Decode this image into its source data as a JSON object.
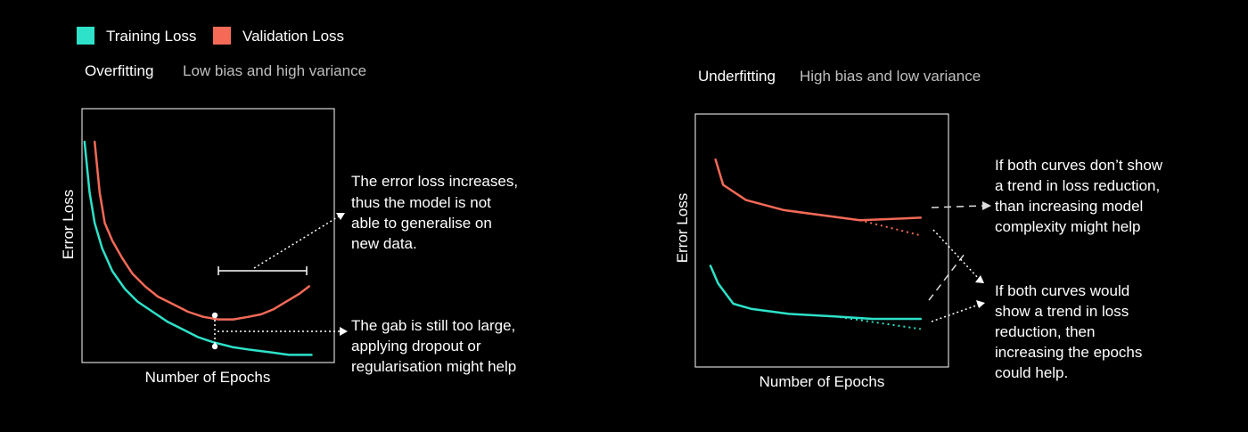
{
  "legend": {
    "items": [
      {
        "label": "Training Loss",
        "color": "#2de2c9"
      },
      {
        "label": "Validation Loss",
        "color": "#f46a57"
      }
    ]
  },
  "colors": {
    "background": "#000000",
    "frame": "#ffffff",
    "title": "#ffffff",
    "subtitle": "#bfbfbf",
    "annotation": "#ffffff"
  },
  "chart_data": [
    {
      "type": "line",
      "title": "Overfitting",
      "subtitle": "Low bias and high variance",
      "xlabel": "Number of Epochs",
      "ylabel": "Error Loss",
      "grid": false,
      "legend": "top-left",
      "xlim": [
        0,
        100
      ],
      "ylim": [
        0,
        100
      ],
      "series": [
        {
          "name": "Training Loss",
          "color": "#2de2c9",
          "x": [
            1,
            3,
            5,
            8,
            12,
            17,
            22,
            28,
            34,
            40,
            46,
            52,
            60,
            67,
            75,
            82,
            88,
            91
          ],
          "y": [
            87,
            67,
            55,
            45,
            36,
            29,
            24,
            20,
            16,
            13,
            10,
            8,
            6,
            5,
            4,
            3,
            3,
            3
          ]
        },
        {
          "name": "Validation Loss",
          "color": "#f46a57",
          "x": [
            5,
            7,
            9,
            12,
            16,
            20,
            25,
            30,
            36,
            42,
            48,
            54,
            60,
            66,
            71,
            76,
            81,
            86,
            90
          ],
          "y": [
            87,
            67,
            55,
            48,
            41,
            35,
            30,
            26,
            23,
            20,
            18,
            17,
            17,
            18,
            19,
            21,
            24,
            27,
            30
          ]
        }
      ],
      "annotations": [
        {
          "text": [
            "The error loss increases,",
            "thus the model is not",
            "able to generalise on",
            "new data."
          ]
        },
        {
          "text": [
            "The gab is still too large,",
            "applying dropout or",
            "regularisation might help"
          ]
        }
      ]
    },
    {
      "type": "line",
      "title": "Underfitting",
      "subtitle": "High bias and low variance",
      "xlabel": "Number of Epochs",
      "ylabel": "Error Loss",
      "grid": false,
      "xlim": [
        0,
        100
      ],
      "ylim": [
        0,
        100
      ],
      "series": [
        {
          "name": "Training Loss",
          "color": "#2de2c9",
          "x": [
            6,
            9,
            15,
            22,
            37,
            55,
            70,
            89
          ],
          "y": [
            40,
            33,
            25,
            23,
            21,
            20,
            19,
            19
          ]
        },
        {
          "name": "Validation Loss",
          "color": "#f46a57",
          "x": [
            8,
            11,
            20,
            35,
            65,
            89
          ],
          "y": [
            82,
            72,
            66,
            62,
            58,
            59
          ]
        }
      ],
      "projections": [
        {
          "series": "Validation Loss",
          "x": [
            65,
            89
          ],
          "y": [
            58,
            52
          ]
        },
        {
          "series": "Training Loss",
          "x": [
            55,
            89
          ],
          "y": [
            20,
            15
          ]
        }
      ],
      "annotations": [
        {
          "text": [
            "If both curves don’t show",
            "a trend in loss reduction,",
            "than increasing model",
            "complexity might help"
          ]
        },
        {
          "text": [
            "If both curves would",
            "show a trend in loss",
            "reduction, then",
            "increasing the epochs",
            "could help."
          ]
        }
      ]
    }
  ]
}
